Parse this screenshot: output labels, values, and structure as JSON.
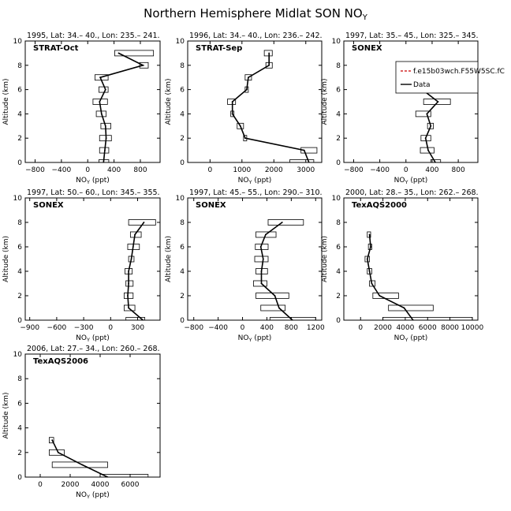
{
  "title_main": "Northern Hemisphere Midlat SON NO",
  "title_sub": "Y",
  "colors": {
    "data": "#000000",
    "model": "#cc0000"
  },
  "legend": {
    "model_label": "f.e15b03wch.F55W5SC.fC",
    "data_label": "Data"
  },
  "chart_data": [
    {
      "type": "line",
      "header": "1995, Lat: 34.– 40., Lon: 235.– 241.",
      "campaign": "STRAT-Oct",
      "xlabel_main": "NO",
      "xlabel_sub": "Y",
      "xlabel_unit": " (ppt)",
      "ylabel": "Altitude (km)",
      "xlim": [
        -950,
        1100
      ],
      "ylim": [
        0,
        10
      ],
      "xticks": [
        -800,
        -400,
        0,
        400,
        800
      ],
      "yticks": [
        0,
        2,
        4,
        6,
        8,
        10
      ],
      "series": [
        {
          "altitude": [
            0,
            1,
            2,
            3,
            4,
            5,
            6,
            7,
            8,
            9
          ],
          "values": [
            240,
            260,
            280,
            270,
            210,
            180,
            270,
            190,
            840,
            470
          ],
          "min": [
            170,
            180,
            180,
            200,
            130,
            80,
            170,
            110,
            790,
            410
          ],
          "max": [
            320,
            320,
            360,
            350,
            280,
            300,
            310,
            310,
            920,
            1000
          ]
        }
      ]
    },
    {
      "type": "line",
      "header": "1996, Lat: 34.– 40., Lon: 236.– 242.",
      "campaign": "STRAT-Sep",
      "xlabel_main": "NO",
      "xlabel_sub": "Y",
      "xlabel_unit": " (ppt)",
      "ylabel": "Altitude (km)",
      "xlim": [
        -700,
        3500
      ],
      "ylim": [
        0,
        10
      ],
      "xticks": [
        0,
        1000,
        2000,
        3000
      ],
      "yticks": [
        0,
        2,
        4,
        6,
        8,
        10
      ],
      "series": [
        {
          "altitude": [
            0,
            1,
            2,
            3,
            4,
            5,
            6,
            7,
            8,
            9
          ],
          "values": [
            3100,
            2950,
            1100,
            950,
            700,
            700,
            1150,
            1200,
            1850,
            1850
          ],
          "min": [
            2500,
            2850,
            1050,
            850,
            650,
            550,
            1100,
            1100,
            1750,
            1700
          ],
          "max": [
            3250,
            3350,
            1150,
            1050,
            750,
            800,
            1200,
            1300,
            1950,
            1950
          ]
        }
      ]
    },
    {
      "type": "line",
      "header": "1997, Lat: 35.– 45., Lon: 325.– 345.",
      "campaign": "SONEX",
      "xlabel_main": "NO",
      "xlabel_sub": "Y",
      "xlabel_unit": " (ppt)",
      "ylabel": "Altitude (km)",
      "xlim": [
        -950,
        1100
      ],
      "ylim": [
        0,
        10
      ],
      "xticks": [
        -800,
        -400,
        0,
        400,
        800
      ],
      "yticks": [
        0,
        2,
        4,
        6,
        8,
        10
      ],
      "series": [
        {
          "altitude": [
            0,
            1,
            2,
            3,
            4,
            5,
            6,
            7
          ],
          "values": [
            450,
            340,
            300,
            380,
            320,
            490,
            250,
            1000
          ],
          "min": [
            380,
            220,
            230,
            330,
            150,
            270,
            180,
            880
          ],
          "max": [
            530,
            430,
            380,
            420,
            380,
            680,
            330,
            1060
          ]
        }
      ]
    },
    {
      "type": "line",
      "header": "1997, Lat: 50.– 60., Lon: 345.– 355.",
      "campaign": "SONEX",
      "xlabel_main": "NO",
      "xlabel_sub": "Y",
      "xlabel_unit": " (ppt)",
      "ylabel": "Altitude (km)",
      "xlim": [
        -950,
        550
      ],
      "ylim": [
        0,
        10
      ],
      "xticks": [
        -900,
        -600,
        -300,
        0,
        300
      ],
      "yticks": [
        0,
        2,
        4,
        6,
        8,
        10
      ],
      "series": [
        {
          "altitude": [
            0,
            1,
            2,
            3,
            4,
            5,
            6,
            7,
            8
          ],
          "values": [
            360,
            200,
            190,
            200,
            200,
            230,
            250,
            270,
            370
          ],
          "min": [
            170,
            150,
            150,
            170,
            160,
            200,
            190,
            220,
            200
          ],
          "max": [
            380,
            270,
            250,
            250,
            240,
            260,
            320,
            340,
            500
          ]
        }
      ]
    },
    {
      "type": "line",
      "header": "1997, Lat: 45.– 55., Lon: 290.– 310.",
      "campaign": "SONEX",
      "xlabel_main": "NO",
      "xlabel_sub": "Y",
      "xlabel_unit": " (ppt)",
      "ylabel": "Altitude (km)",
      "xlim": [
        -900,
        1300
      ],
      "ylim": [
        0,
        10
      ],
      "xticks": [
        -800,
        -400,
        0,
        400,
        800,
        1200
      ],
      "yticks": [
        0,
        2,
        4,
        6,
        8,
        10
      ],
      "series": [
        {
          "altitude": [
            0,
            1,
            2,
            3,
            4,
            5,
            6,
            7,
            8
          ],
          "values": [
            820,
            600,
            530,
            310,
            310,
            340,
            300,
            380,
            650
          ],
          "min": [
            450,
            300,
            220,
            180,
            220,
            200,
            210,
            220,
            420
          ],
          "max": [
            1200,
            700,
            760,
            400,
            410,
            420,
            420,
            550,
            1000
          ]
        }
      ]
    },
    {
      "type": "line",
      "header": "2000, Lat: 28.– 35., Lon: 262.– 268.",
      "campaign": "TexAQS2000",
      "xlabel_main": "NO",
      "xlabel_sub": "Y",
      "xlabel_unit": " (ppt)",
      "ylabel": "Altitude (km)",
      "xlim": [
        -1500,
        10500
      ],
      "ylim": [
        0,
        10
      ],
      "xticks": [
        0,
        2000,
        4000,
        6000,
        8000,
        10000
      ],
      "yticks": [
        0,
        2,
        4,
        6,
        8,
        10
      ],
      "series": [
        {
          "altitude": [
            0,
            1,
            2,
            3,
            4,
            5,
            6,
            7
          ],
          "values": [
            4700,
            3900,
            1700,
            1000,
            800,
            600,
            900,
            800
          ],
          "min": [
            2000,
            2500,
            1100,
            800,
            600,
            400,
            700,
            600
          ],
          "max": [
            10000,
            6500,
            3400,
            1300,
            1000,
            800,
            1000,
            900
          ]
        }
      ]
    },
    {
      "type": "line",
      "header": "2006, Lat: 27.– 34., Lon: 260.– 268.",
      "campaign": "TexAQS2006",
      "xlabel_main": "NO",
      "xlabel_sub": "Y",
      "xlabel_unit": " (ppt)",
      "ylabel": "Altitude (km)",
      "xlim": [
        -1000,
        8000
      ],
      "ylim": [
        0,
        10
      ],
      "xticks": [
        0,
        2000,
        4000,
        6000
      ],
      "yticks": [
        0,
        2,
        4,
        6,
        8,
        10
      ],
      "series": [
        {
          "altitude": [
            0,
            1,
            2,
            3
          ],
          "values": [
            4500,
            2800,
            1200,
            800
          ],
          "min": [
            4000,
            800,
            600,
            600
          ],
          "max": [
            7200,
            4500,
            1600,
            900
          ]
        }
      ]
    }
  ]
}
